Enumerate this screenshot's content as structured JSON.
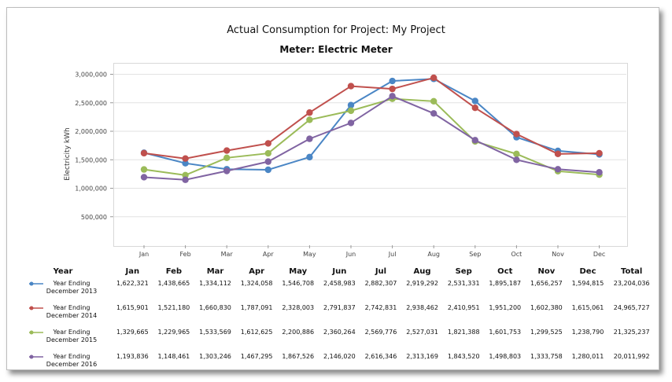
{
  "chart_data": {
    "type": "line",
    "title": "Actual Consumption for Project: My Project",
    "subtitle": "Meter: Electric Meter",
    "ylabel": "Electricity kWh",
    "xlabel": "",
    "categories": [
      "Jan",
      "Feb",
      "Mar",
      "Apr",
      "May",
      "Jun",
      "Jul",
      "Aug",
      "Sep",
      "Oct",
      "Nov",
      "Dec"
    ],
    "ylim": [
      0,
      3200000
    ],
    "yticks": [
      500000,
      1000000,
      1500000,
      2000000,
      2500000,
      3000000
    ],
    "ytick_labels": [
      "500,000",
      "1,000,000",
      "1,500,000",
      "2,000,000",
      "2,500,000",
      "3,000,000"
    ],
    "grid": true,
    "series": [
      {
        "name": "Year Ending December 2013",
        "color": "#4a86c5",
        "values": [
          1622321,
          1438665,
          1334112,
          1324058,
          1546708,
          2458983,
          2882307,
          2919292,
          2531331,
          1895187,
          1656257,
          1594815
        ]
      },
      {
        "name": "Year Ending December 2014",
        "color": "#c0504d",
        "values": [
          1615901,
          1521180,
          1660830,
          1787091,
          2328003,
          2791837,
          2742831,
          2938462,
          2410951,
          1951200,
          1602380,
          1615061
        ]
      },
      {
        "name": "Year Ending December 2015",
        "color": "#9bbb59",
        "values": [
          1329665,
          1229965,
          1533569,
          1612625,
          2200886,
          2360264,
          2569776,
          2527031,
          1821388,
          1601753,
          1299525,
          1238790
        ]
      },
      {
        "name": "Year Ending December 2016",
        "color": "#8064a2",
        "values": [
          1193836,
          1148461,
          1303246,
          1467295,
          1867526,
          2146020,
          2616346,
          2313169,
          1843520,
          1498803,
          1333758,
          1280011
        ]
      }
    ]
  },
  "table": {
    "headers": [
      "Year",
      "Jan",
      "Feb",
      "Mar",
      "Apr",
      "May",
      "Jun",
      "Jul",
      "Aug",
      "Sep",
      "Oct",
      "Nov",
      "Dec",
      "Total"
    ],
    "rows": [
      {
        "year_line1": "Year Ending",
        "year_line2": "December 2013",
        "cells": [
          "1,622,321",
          "1,438,665",
          "1,334,112",
          "1,324,058",
          "1,546,708",
          "2,458,983",
          "2,882,307",
          "2,919,292",
          "2,531,331",
          "1,895,187",
          "1,656,257",
          "1,594,815",
          "23,204,036"
        ]
      },
      {
        "year_line1": "Year Ending",
        "year_line2": "December 2014",
        "cells": [
          "1,615,901",
          "1,521,180",
          "1,660,830",
          "1,787,091",
          "2,328,003",
          "2,791,837",
          "2,742,831",
          "2,938,462",
          "2,410,951",
          "1,951,200",
          "1,602,380",
          "1,615,061",
          "24,965,727"
        ]
      },
      {
        "year_line1": "Year Ending",
        "year_line2": "December 2015",
        "cells": [
          "1,329,665",
          "1,229,965",
          "1,533,569",
          "1,612,625",
          "2,200,886",
          "2,360,264",
          "2,569,776",
          "2,527,031",
          "1,821,388",
          "1,601,753",
          "1,299,525",
          "1,238,790",
          "21,325,237"
        ]
      },
      {
        "year_line1": "Year Ending",
        "year_line2": "December 2016",
        "cells": [
          "1,193,836",
          "1,148,461",
          "1,303,246",
          "1,467,295",
          "1,867,526",
          "2,146,020",
          "2,616,346",
          "2,313,169",
          "1,843,520",
          "1,498,803",
          "1,333,758",
          "1,280,011",
          "20,011,992"
        ]
      }
    ]
  }
}
